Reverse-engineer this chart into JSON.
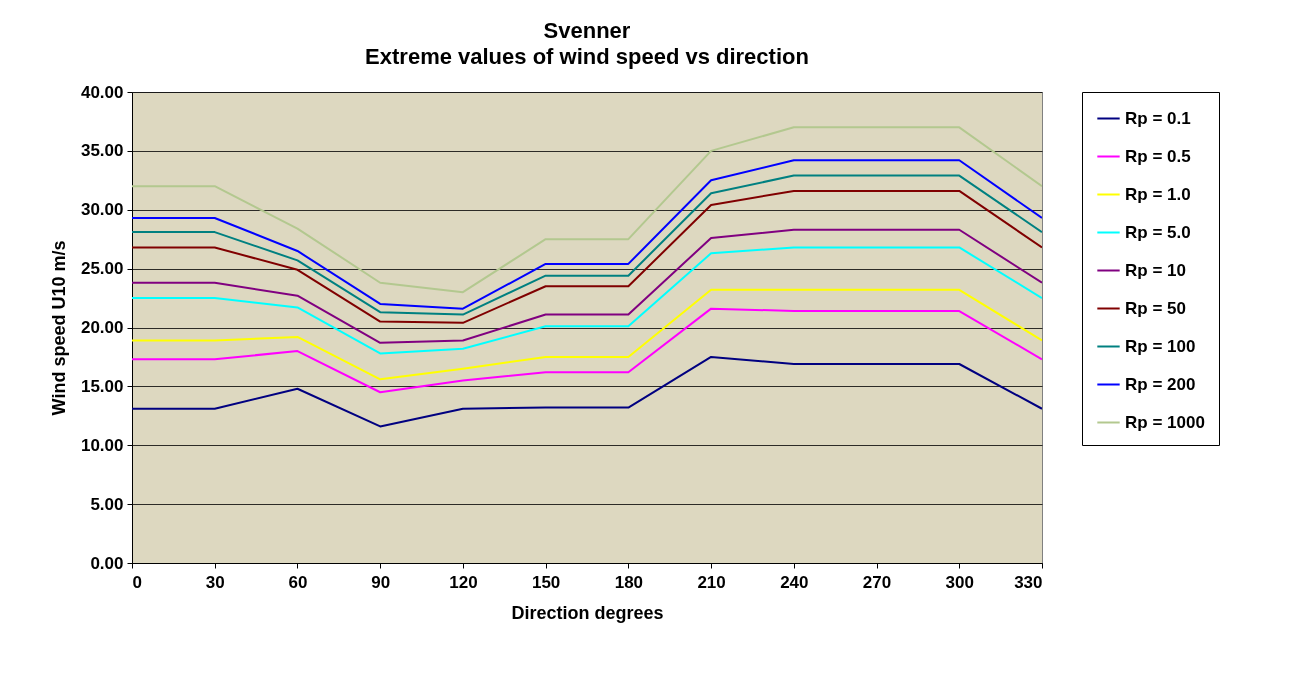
{
  "chart_data": {
    "type": "line",
    "title": "Svenner",
    "subtitle": "Extreme values of wind speed vs direction",
    "xlabel": "Direction degrees",
    "ylabel": "Wind speed U10 m/s",
    "x": [
      0,
      30,
      60,
      90,
      120,
      150,
      180,
      210,
      240,
      270,
      300,
      330
    ],
    "series": [
      {
        "name": "Rp = 0.1",
        "color": "#000080",
        "values": [
          13.1,
          13.1,
          14.8,
          11.6,
          13.1,
          13.2,
          13.2,
          17.5,
          16.9,
          16.9,
          16.9,
          13.1
        ]
      },
      {
        "name": "Rp = 0.5",
        "color": "#ff00ff",
        "values": [
          17.3,
          17.3,
          18.0,
          14.5,
          15.5,
          16.2,
          16.2,
          21.6,
          21.4,
          21.4,
          21.4,
          17.3
        ]
      },
      {
        "name": "Rp = 1.0",
        "color": "#ffff00",
        "values": [
          18.9,
          18.9,
          19.2,
          15.6,
          16.5,
          17.5,
          17.5,
          23.2,
          23.2,
          23.2,
          23.2,
          18.9
        ]
      },
      {
        "name": "Rp = 5.0",
        "color": "#00ffff",
        "values": [
          22.5,
          22.5,
          21.7,
          17.8,
          18.2,
          20.1,
          20.1,
          26.3,
          26.8,
          26.8,
          26.8,
          22.5
        ]
      },
      {
        "name": "Rp = 10",
        "color": "#800080",
        "values": [
          23.8,
          23.8,
          22.7,
          18.7,
          18.9,
          21.1,
          21.1,
          27.6,
          28.3,
          28.3,
          28.3,
          23.8
        ]
      },
      {
        "name": "Rp = 50",
        "color": "#800000",
        "values": [
          26.8,
          26.8,
          24.9,
          20.5,
          20.4,
          23.5,
          23.5,
          30.4,
          31.6,
          31.6,
          31.6,
          26.8
        ]
      },
      {
        "name": "Rp = 100",
        "color": "#008080",
        "values": [
          28.1,
          28.1,
          25.7,
          21.3,
          21.1,
          24.4,
          24.4,
          31.4,
          32.9,
          32.9,
          32.9,
          28.1
        ]
      },
      {
        "name": "Rp = 200",
        "color": "#0000ff",
        "values": [
          29.3,
          29.3,
          26.5,
          22.0,
          21.6,
          25.4,
          25.4,
          32.5,
          34.2,
          34.2,
          34.2,
          29.3
        ]
      },
      {
        "name": "Rp = 1000",
        "color": "#b3c88f",
        "values": [
          32.0,
          32.0,
          28.4,
          23.8,
          23.0,
          27.5,
          27.5,
          35.0,
          37.0,
          37.0,
          37.0,
          32.0
        ]
      }
    ],
    "xlim": [
      0,
      330
    ],
    "xticks": [
      0,
      30,
      60,
      90,
      120,
      150,
      180,
      210,
      240,
      270,
      300,
      330
    ],
    "ylim": [
      0,
      40
    ],
    "yticks": [
      {
        "value": 0,
        "label": "0.00"
      },
      {
        "value": 5,
        "label": "5.00"
      },
      {
        "value": 10,
        "label": "10.00"
      },
      {
        "value": 15,
        "label": "15.00"
      },
      {
        "value": 20,
        "label": "20.00"
      },
      {
        "value": 25,
        "label": "25.00"
      },
      {
        "value": 30,
        "label": "30.00"
      },
      {
        "value": 35,
        "label": "35.00"
      },
      {
        "value": 40,
        "label": "40.00"
      }
    ],
    "grid": "y",
    "legend": "right",
    "marker": "none",
    "line_style": "solid"
  }
}
